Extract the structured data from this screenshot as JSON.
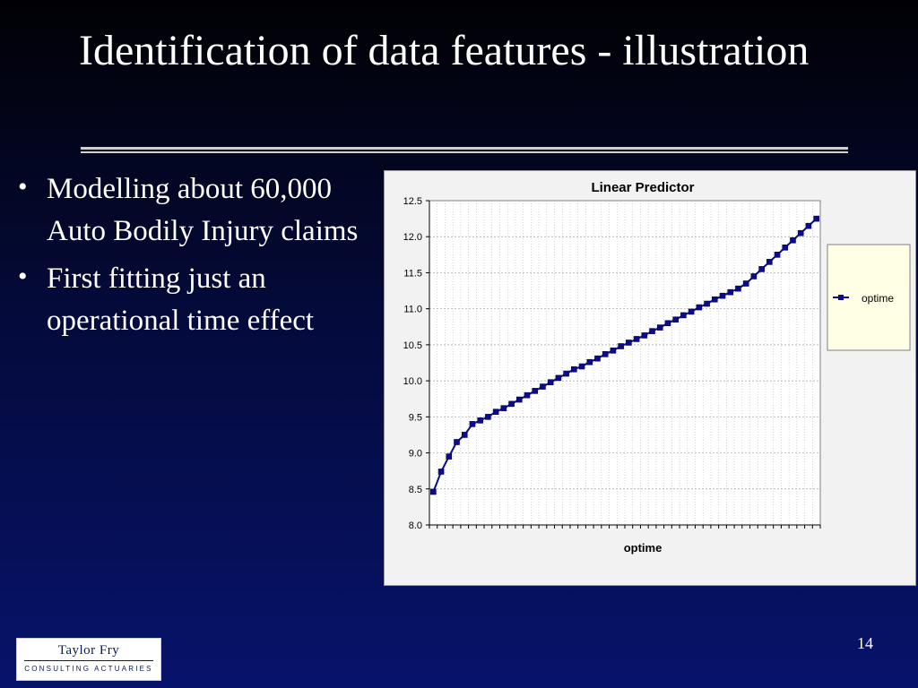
{
  "slide": {
    "title": "Identification of data features - illustration",
    "bullets": [
      "Modelling about 60,000 Auto Bodily Injury claims",
      "First fitting just an operational time effect"
    ],
    "page_number": "14",
    "logo": {
      "name": "Taylor Fry",
      "subtitle": "CONSULTING ACTUARIES"
    }
  },
  "chart_data": {
    "type": "line",
    "title": "Linear Predictor",
    "xlabel": "optime",
    "ylabel": "",
    "ylim": [
      8.0,
      12.5
    ],
    "yticks": [
      "8.0",
      "8.5",
      "9.0",
      "9.5",
      "10.0",
      "10.5",
      "11.0",
      "11.5",
      "12.0",
      "12.5"
    ],
    "grid": true,
    "legend": "right",
    "series": [
      {
        "name": "optime",
        "color": "#0b0b8c",
        "values": [
          8.46,
          8.74,
          8.95,
          9.15,
          9.25,
          9.4,
          9.45,
          9.5,
          9.57,
          9.62,
          9.68,
          9.74,
          9.8,
          9.86,
          9.92,
          9.98,
          10.04,
          10.1,
          10.16,
          10.2,
          10.26,
          10.31,
          10.37,
          10.42,
          10.48,
          10.53,
          10.58,
          10.63,
          10.69,
          10.74,
          10.8,
          10.85,
          10.91,
          10.96,
          11.02,
          11.07,
          11.13,
          11.18,
          11.23,
          11.28,
          11.35,
          11.45,
          11.55,
          11.65,
          11.75,
          11.85,
          11.95,
          12.05,
          12.15,
          12.25
        ]
      }
    ]
  }
}
